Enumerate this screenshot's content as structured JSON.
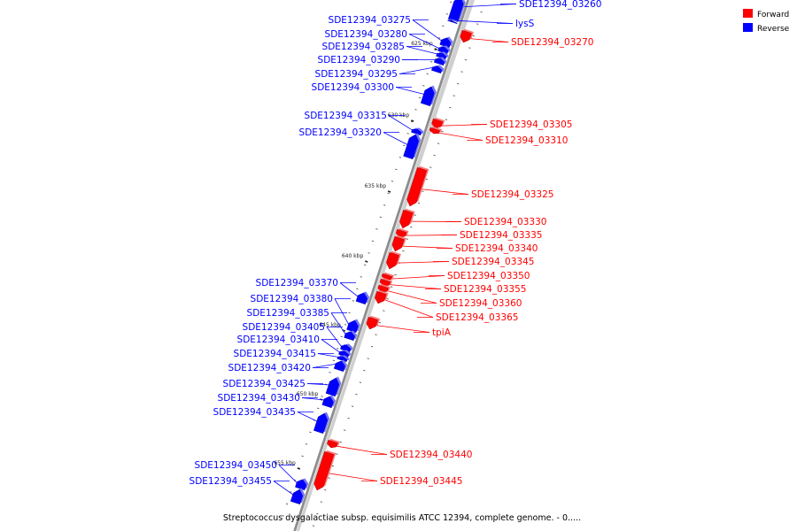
{
  "legend": {
    "forward": "Forward",
    "reverse": "Reverse"
  },
  "colors": {
    "forward": "#ff0000",
    "reverse": "#0000ff",
    "backbone": "#888888"
  },
  "caption": "Streptococcus dysgalactiae subsp. equisimilis ATCC 12394, complete genome. - 0.....",
  "scale_labels": [
    "625 kbp",
    "630 kbp",
    "635 kbp",
    "640 kbp",
    "645 kbp",
    "650 kbp",
    "655 kbp"
  ],
  "genes": [
    {
      "name": "SDE12394_03260",
      "strand": "reverse"
    },
    {
      "name": "lysS",
      "strand": "reverse"
    },
    {
      "name": "SDE12394_03270",
      "strand": "forward"
    },
    {
      "name": "SDE12394_03275",
      "strand": "reverse"
    },
    {
      "name": "SDE12394_03280",
      "strand": "reverse"
    },
    {
      "name": "SDE12394_03285",
      "strand": "reverse"
    },
    {
      "name": "SDE12394_03290",
      "strand": "reverse"
    },
    {
      "name": "SDE12394_03295",
      "strand": "reverse"
    },
    {
      "name": "SDE12394_03300",
      "strand": "reverse"
    },
    {
      "name": "SDE12394_03305",
      "strand": "forward"
    },
    {
      "name": "SDE12394_03310",
      "strand": "forward"
    },
    {
      "name": "SDE12394_03315",
      "strand": "reverse"
    },
    {
      "name": "SDE12394_03320",
      "strand": "reverse"
    },
    {
      "name": "SDE12394_03325",
      "strand": "forward"
    },
    {
      "name": "SDE12394_03330",
      "strand": "forward"
    },
    {
      "name": "SDE12394_03335",
      "strand": "forward"
    },
    {
      "name": "SDE12394_03340",
      "strand": "forward"
    },
    {
      "name": "SDE12394_03345",
      "strand": "forward"
    },
    {
      "name": "SDE12394_03350",
      "strand": "forward"
    },
    {
      "name": "SDE12394_03355",
      "strand": "forward"
    },
    {
      "name": "SDE12394_03360",
      "strand": "forward"
    },
    {
      "name": "SDE12394_03365",
      "strand": "forward"
    },
    {
      "name": "SDE12394_03370",
      "strand": "reverse"
    },
    {
      "name": "SDE12394_03380",
      "strand": "reverse"
    },
    {
      "name": "SDE12394_03385",
      "strand": "reverse"
    },
    {
      "name": "tpiA",
      "strand": "forward"
    },
    {
      "name": "SDE12394_03405",
      "strand": "reverse"
    },
    {
      "name": "SDE12394_03410",
      "strand": "reverse"
    },
    {
      "name": "SDE12394_03415",
      "strand": "reverse"
    },
    {
      "name": "SDE12394_03420",
      "strand": "reverse"
    },
    {
      "name": "SDE12394_03425",
      "strand": "reverse"
    },
    {
      "name": "SDE12394_03430",
      "strand": "reverse"
    },
    {
      "name": "SDE12394_03435",
      "strand": "reverse"
    },
    {
      "name": "SDE12394_03440",
      "strand": "forward"
    },
    {
      "name": "SDE12394_03445",
      "strand": "forward"
    },
    {
      "name": "SDE12394_03450",
      "strand": "reverse"
    },
    {
      "name": "SDE12394_03455",
      "strand": "reverse"
    }
  ]
}
